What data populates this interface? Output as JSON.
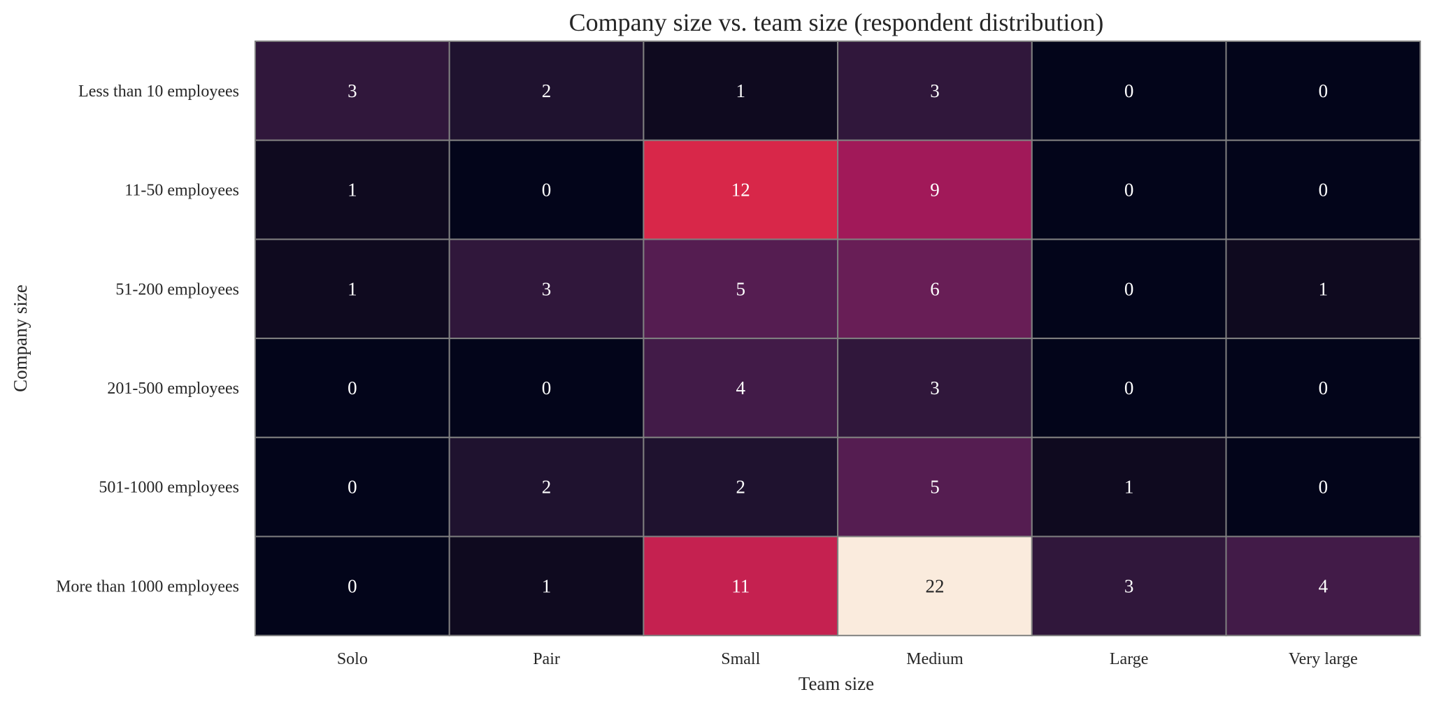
{
  "chart_data": {
    "type": "heatmap",
    "title": "Company size vs. team size (respondent distribution)",
    "xlabel": "Team size",
    "ylabel": "Company size",
    "x_categories": [
      "Solo",
      "Pair",
      "Small",
      "Medium",
      "Large",
      "Very large"
    ],
    "y_categories": [
      "Less than 10 employees",
      "11-50 employees",
      "51-200 employees",
      "201-500 employees",
      "501-1000 employees",
      "More than 1000 employees"
    ],
    "values": [
      [
        3,
        2,
        1,
        3,
        0,
        0
      ],
      [
        1,
        0,
        12,
        9,
        0,
        0
      ],
      [
        1,
        3,
        5,
        6,
        0,
        1
      ],
      [
        0,
        0,
        4,
        3,
        0,
        0
      ],
      [
        0,
        2,
        2,
        5,
        1,
        0
      ],
      [
        0,
        1,
        11,
        22,
        3,
        4
      ]
    ],
    "value_range": [
      0,
      22
    ],
    "colormap": "rocket",
    "colorbar": false,
    "cell_border_color": "#808080"
  }
}
